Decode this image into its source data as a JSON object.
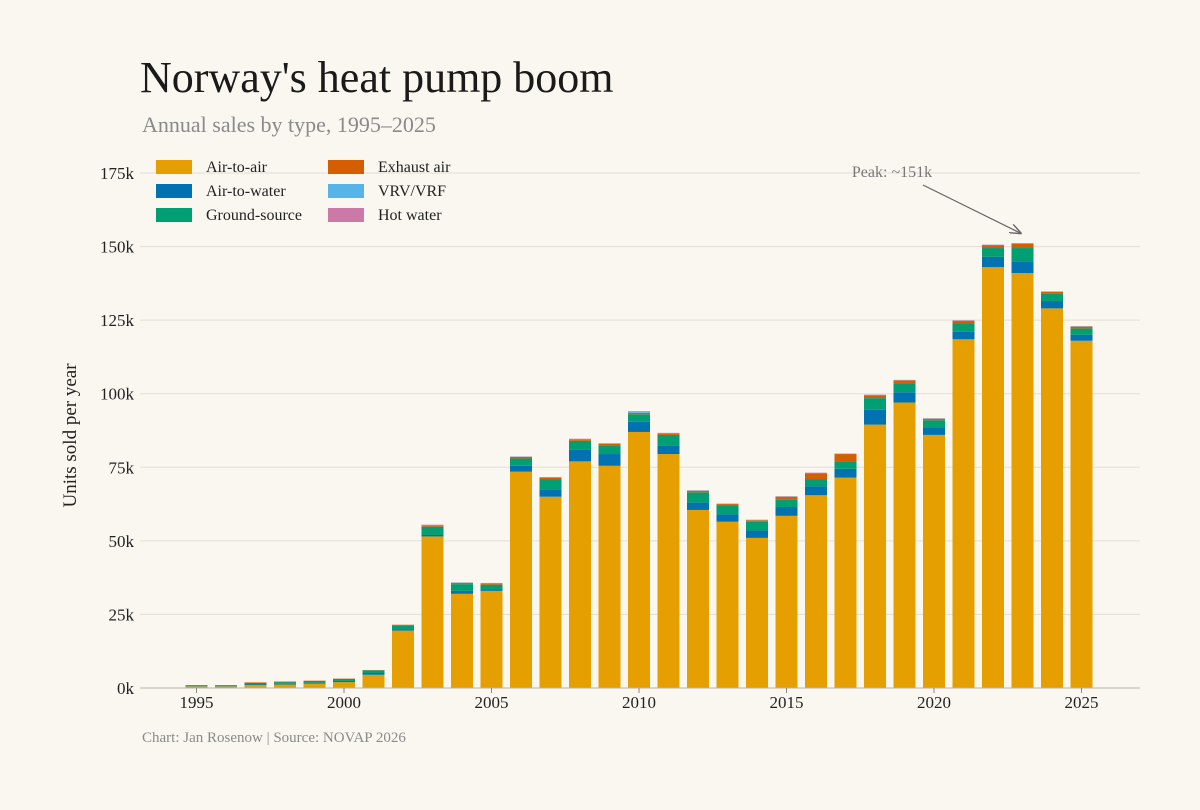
{
  "header": {
    "title": "Norway's heat pump boom",
    "subtitle": "Annual sales by type, 1995–2025"
  },
  "footer": {
    "caption": "Chart: Jan Rosenow  |  Source: NOVAP 2026"
  },
  "chart_data": {
    "type": "bar",
    "stacked": true,
    "title": "Norway's heat pump boom",
    "subtitle": "Annual sales by type, 1995–2025",
    "xlabel": "",
    "ylabel": "Units sold per year",
    "ylim": [
      0,
      175000
    ],
    "yticks": [
      0,
      25000,
      50000,
      75000,
      100000,
      125000,
      150000,
      175000
    ],
    "ytick_labels": [
      "0k",
      "25k",
      "50k",
      "75k",
      "100k",
      "125k",
      "150k",
      "175k"
    ],
    "xticks": [
      1995,
      2000,
      2005,
      2010,
      2015,
      2020,
      2025
    ],
    "grid": "horizontal",
    "legend_position": "top-left",
    "annotation": {
      "text": "Peak: ~151k",
      "x": 2023,
      "y": 151500
    },
    "categories": [
      1995,
      1996,
      1997,
      1998,
      1999,
      2000,
      2001,
      2002,
      2003,
      2004,
      2005,
      2006,
      2007,
      2008,
      2009,
      2010,
      2011,
      2012,
      2013,
      2014,
      2015,
      2016,
      2017,
      2018,
      2019,
      2020,
      2021,
      2022,
      2023,
      2024,
      2025
    ],
    "series": [
      {
        "name": "Air-to-air",
        "color": "#e69f00",
        "values": [
          500,
          500,
          1000,
          1200,
          1500,
          2000,
          4500,
          19500,
          51500,
          32000,
          33000,
          73500,
          65000,
          77000,
          75500,
          87000,
          79500,
          60500,
          56500,
          51000,
          58500,
          65500,
          71500,
          89500,
          97000,
          86000,
          118500,
          143000,
          141000,
          129000,
          118000
        ]
      },
      {
        "name": "Air-to-water",
        "color": "#0072b2",
        "values": [
          100,
          100,
          200,
          200,
          300,
          400,
          600,
          500,
          500,
          1000,
          600,
          2000,
          2500,
          4000,
          4000,
          3500,
          3000,
          2500,
          2500,
          2500,
          3000,
          3000,
          3000,
          5000,
          3500,
          2500,
          2500,
          3500,
          4000,
          2500,
          2000
        ]
      },
      {
        "name": "Ground-source",
        "color": "#009e73",
        "values": [
          300,
          300,
          500,
          600,
          600,
          700,
          900,
          1200,
          2800,
          2300,
          1500,
          2500,
          3500,
          3000,
          3000,
          2500,
          3500,
          3500,
          3000,
          3000,
          2500,
          2500,
          2500,
          4000,
          3000,
          2500,
          3000,
          3000,
          4500,
          2500,
          2200
        ]
      },
      {
        "name": "Exhaust air",
        "color": "#d55e00",
        "values": [
          100,
          100,
          200,
          200,
          100,
          100,
          100,
          300,
          500,
          400,
          400,
          500,
          500,
          500,
          500,
          500,
          500,
          500,
          500,
          500,
          1000,
          2000,
          2500,
          1000,
          1000,
          500,
          800,
          1000,
          1500,
          600,
          600
        ]
      },
      {
        "name": "VRV/VRF",
        "color": "#56b4e9",
        "values": [
          0,
          0,
          0,
          0,
          0,
          0,
          0,
          0,
          100,
          100,
          100,
          100,
          100,
          100,
          100,
          500,
          100,
          100,
          100,
          100,
          100,
          100,
          100,
          100,
          100,
          100,
          100,
          100,
          100,
          100,
          100
        ]
      },
      {
        "name": "Hot water",
        "color": "#cc79a7",
        "values": [
          0,
          0,
          0,
          0,
          0,
          0,
          0,
          0,
          100,
          100,
          100,
          100,
          100,
          100,
          100,
          100,
          100,
          100,
          100,
          100,
          100,
          100,
          100,
          100,
          100,
          100,
          100,
          100,
          100,
          100,
          100
        ]
      }
    ]
  }
}
